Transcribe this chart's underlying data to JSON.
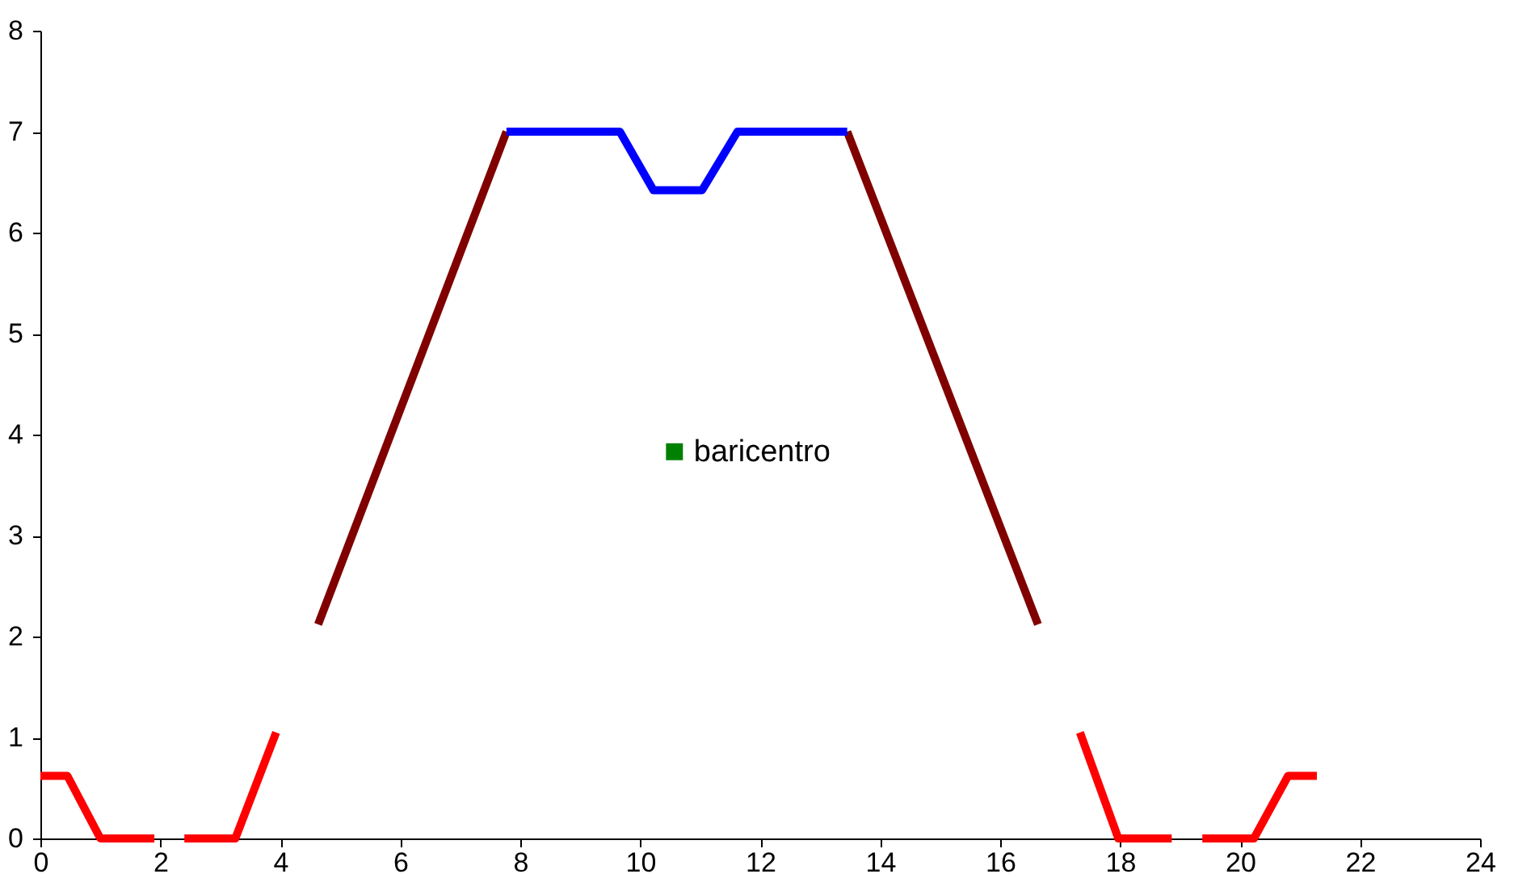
{
  "chart_data": {
    "type": "line",
    "xlim": [
      0,
      24
    ],
    "xticks": [
      0,
      2,
      4,
      6,
      8,
      10,
      12,
      14,
      16,
      18,
      20,
      22,
      24
    ],
    "ylim": [
      0,
      8
    ],
    "yticks": [
      0,
      1,
      2,
      3,
      4,
      5,
      6,
      7,
      8
    ],
    "grid": false,
    "legend": false,
    "line_style": "solid",
    "series": [
      {
        "color": "#ff0000",
        "x": [
          0,
          0.45,
          1,
          1.9,
          2.15,
          2.4,
          3.25,
          3.93,
          10.6,
          17.33,
          17.97,
          18.86,
          19.1,
          19.37,
          20.23,
          20.8,
          21.28
        ],
        "values": [
          0.62,
          0.62,
          0,
          0,
          null,
          0,
          0,
          1.05,
          null,
          1.05,
          0,
          0,
          null,
          0,
          0,
          0.62,
          0.62
        ]
      },
      {
        "color": "#800000",
        "x": [
          4.63,
          7.77,
          10.6,
          13.45,
          16.63
        ],
        "values": [
          2.12,
          7,
          null,
          7,
          2.12
        ]
      },
      {
        "color": "#0000ff",
        "x": [
          7.77,
          9.66,
          10.22,
          11.03,
          11.62,
          13.45
        ],
        "values": [
          7,
          7,
          6.42,
          6.42,
          7,
          7
        ]
      },
      {
        "type": "scatter",
        "name": "baricentro",
        "marker": "square",
        "color": "#008000",
        "x": [
          10.57
        ],
        "values": [
          3.83
        ]
      }
    ]
  }
}
